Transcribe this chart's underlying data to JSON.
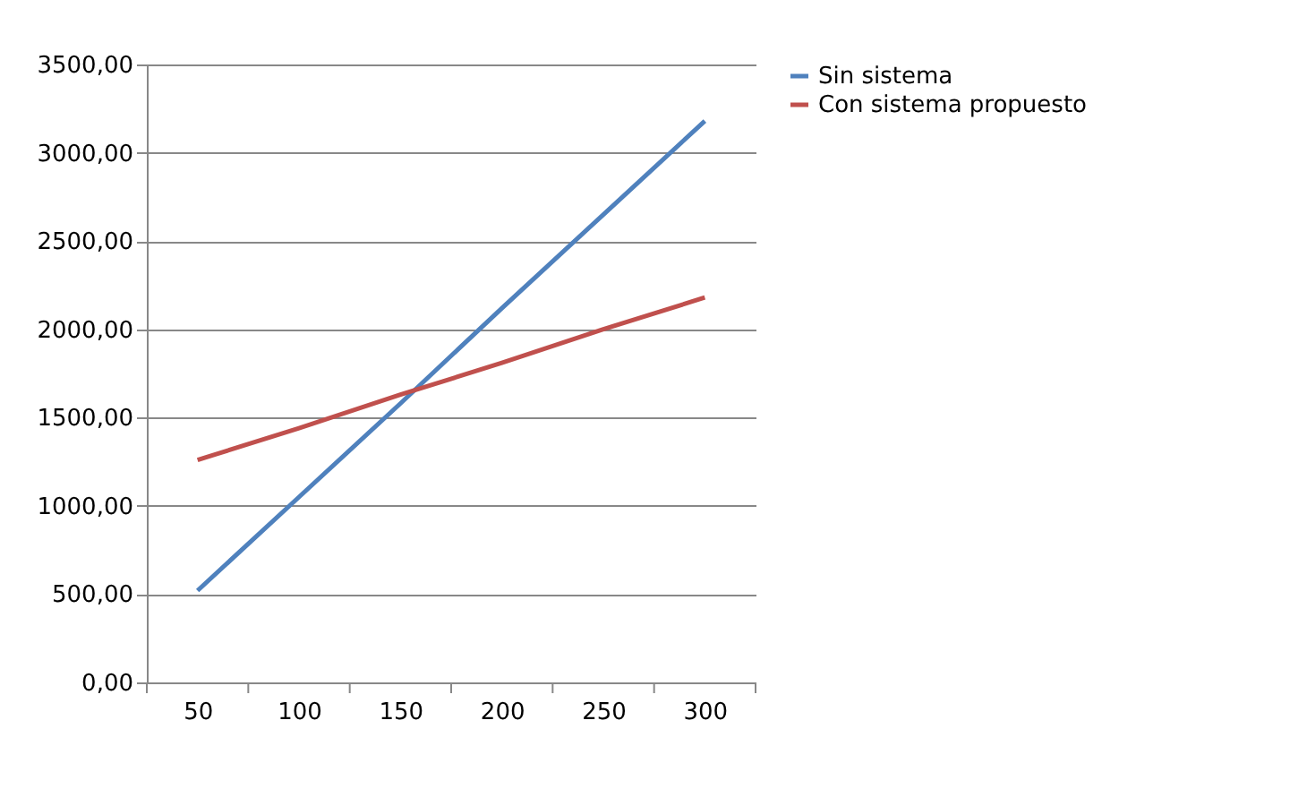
{
  "chart_data": {
    "type": "line",
    "categories": [
      "50",
      "100",
      "150",
      "200",
      "250",
      "300"
    ],
    "series": [
      {
        "name": "Sin sistema",
        "color": "#4f81bd",
        "values": [
          520,
          1050,
          1580,
          2120,
          2650,
          3180
        ]
      },
      {
        "name": "Con sistema propuesto",
        "color": "#c0504d",
        "values": [
          1260,
          1440,
          1630,
          1810,
          2000,
          2180
        ]
      }
    ],
    "ylim": [
      0,
      3500
    ],
    "yticks": [
      {
        "value": 0,
        "label": "0,00"
      },
      {
        "value": 500,
        "label": "500,00"
      },
      {
        "value": 1000,
        "label": "1000,00"
      },
      {
        "value": 1500,
        "label": "1500,00"
      },
      {
        "value": 2000,
        "label": "2000,00"
      },
      {
        "value": 2500,
        "label": "2500,00"
      },
      {
        "value": 3000,
        "label": "3000,00"
      },
      {
        "value": 3500,
        "label": "3500,00"
      }
    ],
    "grid": "y",
    "legend": "right",
    "marker": "none",
    "line_style": "solid"
  }
}
